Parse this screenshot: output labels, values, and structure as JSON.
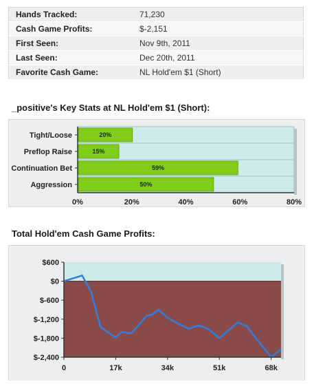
{
  "summary": {
    "rows": [
      {
        "label": "Hands Tracked:",
        "value": "71,230"
      },
      {
        "label": "Cash Game Profits:",
        "value": "$-2,151"
      },
      {
        "label": "First Seen:",
        "value": "Nov 9th, 2011"
      },
      {
        "label": "Last Seen:",
        "value": "Dec 20th, 2011"
      },
      {
        "label": "Favorite Cash Game:",
        "value": "NL Hold'em $1 (Short)"
      }
    ]
  },
  "key_stats_title": "_positive's Key Stats at NL Hold'em $1 (Short):",
  "profits_title": "Total Hold'em Cash Game Profits:",
  "colors": {
    "bar_fill": "#7fcc1a",
    "plot_bg": "#cdeaea",
    "loss_fill": "#8b4a4a",
    "line": "#2d7fe0"
  },
  "chart_data": [
    {
      "type": "bar",
      "orientation": "horizontal",
      "categories": [
        "Tight/Loose",
        "Preflop Raise",
        "Continuation Bet",
        "Aggression"
      ],
      "values": [
        20,
        15,
        59,
        50
      ],
      "value_labels": [
        "20%",
        "15%",
        "59%",
        "50%"
      ],
      "xlim": [
        0,
        80
      ],
      "xticks": [
        "0%",
        "20%",
        "40%",
        "60%",
        "80%"
      ],
      "grid": true
    },
    {
      "type": "line",
      "x": [
        0,
        6000,
        9000,
        12000,
        17000,
        19000,
        22000,
        24000,
        27000,
        29000,
        31000,
        34000,
        37000,
        41000,
        44000,
        46000,
        48000,
        51000,
        54000,
        57000,
        60000,
        63000,
        68000,
        71230
      ],
      "y": [
        0,
        180,
        -350,
        -1450,
        -1780,
        -1600,
        -1650,
        -1450,
        -1100,
        -1050,
        -900,
        -1150,
        -1320,
        -1500,
        -1400,
        -1450,
        -1550,
        -1800,
        -1550,
        -1300,
        -1420,
        -1800,
        -2400,
        -2151
      ],
      "xlim": [
        0,
        71230
      ],
      "ylim": [
        -2400,
        600
      ],
      "xticks": [
        0,
        17000,
        34000,
        51000,
        68000
      ],
      "xtick_labels": [
        "0",
        "17k",
        "34k",
        "51k",
        "68k"
      ],
      "yticks": [
        600,
        0,
        -600,
        -1200,
        -1800,
        -2400
      ],
      "ytick_labels": [
        "$600",
        "$0",
        "$-600",
        "$-1,200",
        "$-1,800",
        "$-2,400"
      ],
      "grid": false
    }
  ]
}
